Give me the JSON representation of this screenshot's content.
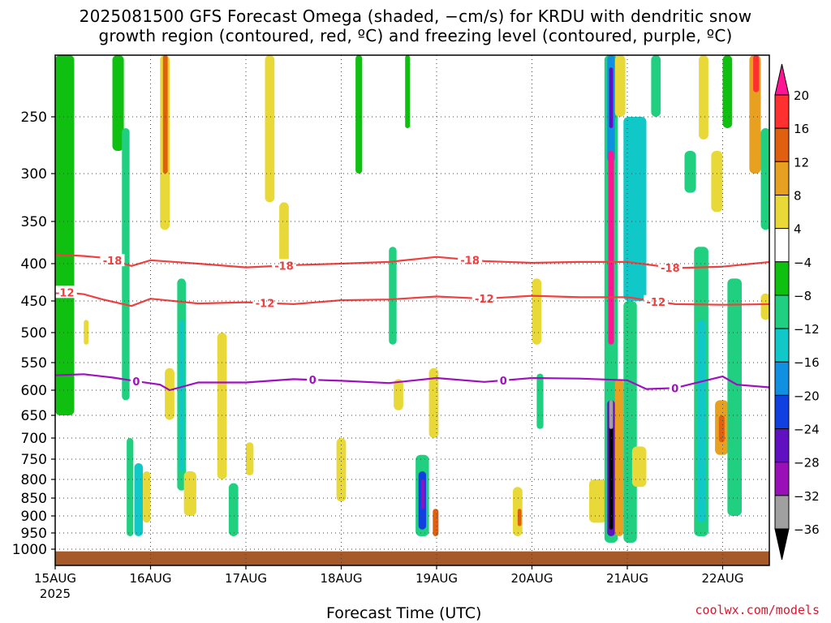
{
  "title_line1": "2025081500 GFS Forecast Omega (shaded, −cm/s) for KRDU with dendritic snow",
  "title_line2": "growth region (contoured, red, ºC) and freezing level (contoured, purple, ºC)",
  "credit": "coolwx.com/models",
  "chart_data": {
    "type": "heatmap",
    "title": "2025081500 GFS Forecast Omega (shaded, −cm/s) for KRDU with dendritic snow growth region (contoured, red, ºC) and freezing level (contoured, purple, ºC)",
    "xlabel": "Forecast Time (UTC)",
    "ylabel": "",
    "x_ticks": [
      {
        "label": "15AUG",
        "sub": "2025",
        "day": 0
      },
      {
        "label": "16AUG",
        "day": 1
      },
      {
        "label": "17AUG",
        "day": 2
      },
      {
        "label": "18AUG",
        "day": 3
      },
      {
        "label": "19AUG",
        "day": 4
      },
      {
        "label": "20AUG",
        "day": 5
      },
      {
        "label": "21AUG",
        "day": 6
      },
      {
        "label": "22AUG",
        "day": 7
      }
    ],
    "xlim": [
      0,
      7.5
    ],
    "y_ticks": [
      250,
      300,
      350,
      400,
      450,
      500,
      550,
      600,
      650,
      700,
      750,
      800,
      850,
      900,
      950,
      1000
    ],
    "ylim": [
      1000,
      200
    ],
    "y_scale": "pressure",
    "grid": true,
    "colorbar": {
      "labels": [
        "20",
        "16",
        "12",
        "8",
        "4",
        "−4",
        "−8",
        "−12",
        "−16",
        "−20",
        "−24",
        "−28",
        "−32",
        "−36"
      ],
      "colors": [
        "#ff1493",
        "#ff3030",
        "#e06010",
        "#e8a020",
        "#e8d838",
        "#ffffff",
        "#10c010",
        "#20d080",
        "#10c8c8",
        "#1090e0",
        "#1040e0",
        "#6010c0",
        "#9a10b8",
        "#a0a0a0",
        "#000000"
      ]
    },
    "ground_color": "#a65a2a",
    "contours": [
      {
        "label": "-18",
        "color": "#f04040",
        "points": [
          [
            0,
            389
          ],
          [
            0.3,
            391
          ],
          [
            0.5,
            393
          ],
          [
            0.8,
            403
          ],
          [
            1.0,
            396
          ],
          [
            1.5,
            400
          ],
          [
            2.0,
            405
          ],
          [
            2.5,
            402
          ],
          [
            3.0,
            400
          ],
          [
            3.5,
            398
          ],
          [
            4.0,
            392
          ],
          [
            4.5,
            397
          ],
          [
            5.0,
            399
          ],
          [
            5.5,
            398
          ],
          [
            6.0,
            398
          ],
          [
            6.5,
            406
          ],
          [
            7.0,
            404
          ],
          [
            7.5,
            398
          ]
        ],
        "label_days": [
          0.6,
          2.4,
          4.35,
          6.45
        ]
      },
      {
        "label": "-12",
        "color": "#f04040",
        "points": [
          [
            0,
            437
          ],
          [
            0.3,
            441
          ],
          [
            0.5,
            448
          ],
          [
            0.8,
            458
          ],
          [
            1.0,
            447
          ],
          [
            1.5,
            454
          ],
          [
            2.0,
            452
          ],
          [
            2.5,
            455
          ],
          [
            3.0,
            449
          ],
          [
            3.5,
            448
          ],
          [
            4.0,
            444
          ],
          [
            4.5,
            447
          ],
          [
            5.0,
            443
          ],
          [
            5.5,
            445
          ],
          [
            6.0,
            445
          ],
          [
            6.5,
            455
          ],
          [
            7.0,
            456
          ],
          [
            7.5,
            455
          ]
        ],
        "label_days": [
          0.1,
          2.2,
          4.5,
          6.3
        ]
      },
      {
        "label": "0",
        "color": "#a010c0",
        "points": [
          [
            0,
            573
          ],
          [
            0.3,
            571
          ],
          [
            0.6,
            577
          ],
          [
            0.9,
            585
          ],
          [
            1.1,
            590
          ],
          [
            1.2,
            600
          ],
          [
            1.5,
            586
          ],
          [
            2.0,
            586
          ],
          [
            2.5,
            580
          ],
          [
            3.0,
            583
          ],
          [
            3.5,
            587
          ],
          [
            4.0,
            578
          ],
          [
            4.5,
            585
          ],
          [
            5.0,
            578
          ],
          [
            5.5,
            579
          ],
          [
            6.0,
            582
          ],
          [
            6.2,
            598
          ],
          [
            6.5,
            596
          ],
          [
            7.0,
            575
          ],
          [
            7.15,
            590
          ],
          [
            7.5,
            595
          ]
        ],
        "label_days": [
          0.85,
          2.7,
          4.7,
          6.5
        ]
      }
    ],
    "omega_regions": [
      {
        "d0": 0.0,
        "d1": 0.2,
        "p0": 200,
        "p1": 650,
        "value": -6
      },
      {
        "d0": 0.3,
        "d1": 0.35,
        "p0": 480,
        "p1": 520,
        "value": 6
      },
      {
        "d0": 0.6,
        "d1": 0.72,
        "p0": 200,
        "p1": 280,
        "value": -6
      },
      {
        "d0": 0.7,
        "d1": 0.78,
        "p0": 260,
        "p1": 620,
        "value": -8
      },
      {
        "d0": 0.75,
        "d1": 0.82,
        "p0": 700,
        "p1": 960,
        "value": -8
      },
      {
        "d0": 0.83,
        "d1": 0.92,
        "p0": 760,
        "p1": 960,
        "value": -14
      },
      {
        "d0": 0.92,
        "d1": 1.0,
        "p0": 780,
        "p1": 920,
        "value": 6
      },
      {
        "d0": 1.1,
        "d1": 1.2,
        "p0": 200,
        "p1": 360,
        "value": 6
      },
      {
        "d0": 1.13,
        "d1": 1.18,
        "p0": 200,
        "p1": 300,
        "value": 12
      },
      {
        "d0": 1.15,
        "d1": 1.25,
        "p0": 560,
        "p1": 660,
        "value": 6
      },
      {
        "d0": 1.28,
        "d1": 1.37,
        "p0": 420,
        "p1": 830,
        "value": -8
      },
      {
        "d0": 1.3,
        "d1": 1.35,
        "p0": 480,
        "p1": 780,
        "value": -14
      },
      {
        "d0": 1.35,
        "d1": 1.48,
        "p0": 780,
        "p1": 900,
        "value": 6
      },
      {
        "d0": 1.7,
        "d1": 1.8,
        "p0": 500,
        "p1": 800,
        "value": 6
      },
      {
        "d0": 1.82,
        "d1": 1.92,
        "p0": 810,
        "p1": 960,
        "value": -10
      },
      {
        "d0": 2.0,
        "d1": 2.08,
        "p0": 710,
        "p1": 790,
        "value": 6
      },
      {
        "d0": 2.2,
        "d1": 2.3,
        "p0": 200,
        "p1": 330,
        "value": 6
      },
      {
        "d0": 2.35,
        "d1": 2.45,
        "p0": 330,
        "p1": 400,
        "value": 6
      },
      {
        "d0": 2.95,
        "d1": 3.05,
        "p0": 700,
        "p1": 860,
        "value": 6
      },
      {
        "d0": 3.15,
        "d1": 3.22,
        "p0": 200,
        "p1": 300,
        "value": -6
      },
      {
        "d0": 3.5,
        "d1": 3.58,
        "p0": 380,
        "p1": 520,
        "value": -8
      },
      {
        "d0": 3.55,
        "d1": 3.65,
        "p0": 580,
        "p1": 640,
        "value": 6
      },
      {
        "d0": 3.67,
        "d1": 3.72,
        "p0": 200,
        "p1": 260,
        "value": -6
      },
      {
        "d0": 3.78,
        "d1": 3.92,
        "p0": 740,
        "p1": 960,
        "value": -8
      },
      {
        "d0": 3.81,
        "d1": 3.89,
        "p0": 780,
        "p1": 940,
        "value": -20
      },
      {
        "d0": 3.84,
        "d1": 3.87,
        "p0": 800,
        "p1": 880,
        "value": -28
      },
      {
        "d0": 3.92,
        "d1": 4.02,
        "p0": 560,
        "p1": 700,
        "value": 6
      },
      {
        "d0": 3.96,
        "d1": 4.02,
        "p0": 880,
        "p1": 960,
        "value": 14
      },
      {
        "d0": 4.8,
        "d1": 4.9,
        "p0": 820,
        "p1": 960,
        "value": 6
      },
      {
        "d0": 4.85,
        "d1": 4.89,
        "p0": 880,
        "p1": 930,
        "value": 12
      },
      {
        "d0": 5.0,
        "d1": 5.1,
        "p0": 420,
        "p1": 520,
        "value": 6
      },
      {
        "d0": 5.05,
        "d1": 5.12,
        "p0": 570,
        "p1": 680,
        "value": -8
      },
      {
        "d0": 5.6,
        "d1": 5.78,
        "p0": 800,
        "p1": 920,
        "value": 6
      },
      {
        "d0": 5.76,
        "d1": 5.9,
        "p0": 200,
        "p1": 980,
        "value": -10
      },
      {
        "d0": 5.79,
        "d1": 5.87,
        "p0": 200,
        "p1": 290,
        "value": -16
      },
      {
        "d0": 5.81,
        "d1": 5.85,
        "p0": 210,
        "p1": 260,
        "value": -26
      },
      {
        "d0": 5.8,
        "d1": 5.86,
        "p0": 280,
        "p1": 520,
        "value": 20
      },
      {
        "d0": 5.79,
        "d1": 5.87,
        "p0": 620,
        "p1": 960,
        "value": -26
      },
      {
        "d0": 5.81,
        "d1": 5.85,
        "p0": 650,
        "p1": 940,
        "value": -36
      },
      {
        "d0": 5.81,
        "d1": 5.85,
        "p0": 620,
        "p1": 680,
        "value": -32
      },
      {
        "d0": 5.87,
        "d1": 5.96,
        "p0": 580,
        "p1": 960,
        "value": 10
      },
      {
        "d0": 5.87,
        "d1": 5.98,
        "p0": 200,
        "p1": 250,
        "value": 6
      },
      {
        "d0": 5.96,
        "d1": 6.2,
        "p0": 250,
        "p1": 450,
        "value": -12
      },
      {
        "d0": 5.96,
        "d1": 6.1,
        "p0": 450,
        "p1": 980,
        "value": -8
      },
      {
        "d0": 6.05,
        "d1": 6.2,
        "p0": 720,
        "p1": 820,
        "value": 6
      },
      {
        "d0": 6.25,
        "d1": 6.35,
        "p0": 200,
        "p1": 250,
        "value": -8
      },
      {
        "d0": 6.6,
        "d1": 6.72,
        "p0": 280,
        "p1": 320,
        "value": -8
      },
      {
        "d0": 6.7,
        "d1": 6.85,
        "p0": 380,
        "p1": 960,
        "value": -8
      },
      {
        "d0": 6.74,
        "d1": 6.82,
        "p0": 480,
        "p1": 920,
        "value": -14
      },
      {
        "d0": 6.75,
        "d1": 6.85,
        "p0": 200,
        "p1": 270,
        "value": 6
      },
      {
        "d0": 6.92,
        "d1": 7.06,
        "p0": 620,
        "p1": 740,
        "value": 8
      },
      {
        "d0": 6.96,
        "d1": 7.02,
        "p0": 650,
        "p1": 710,
        "value": 14
      },
      {
        "d0": 6.88,
        "d1": 7.0,
        "p0": 280,
        "p1": 340,
        "value": 6
      },
      {
        "d0": 7.0,
        "d1": 7.1,
        "p0": 200,
        "p1": 260,
        "value": -6
      },
      {
        "d0": 7.05,
        "d1": 7.2,
        "p0": 420,
        "p1": 900,
        "value": -10
      },
      {
        "d0": 7.28,
        "d1": 7.4,
        "p0": 200,
        "p1": 300,
        "value": 10
      },
      {
        "d0": 7.32,
        "d1": 7.38,
        "p0": 200,
        "p1": 230,
        "value": 16
      },
      {
        "d0": 7.4,
        "d1": 7.5,
        "p0": 260,
        "p1": 360,
        "value": -10
      },
      {
        "d0": 7.4,
        "d1": 7.5,
        "p0": 440,
        "p1": 480,
        "value": 6
      }
    ]
  }
}
